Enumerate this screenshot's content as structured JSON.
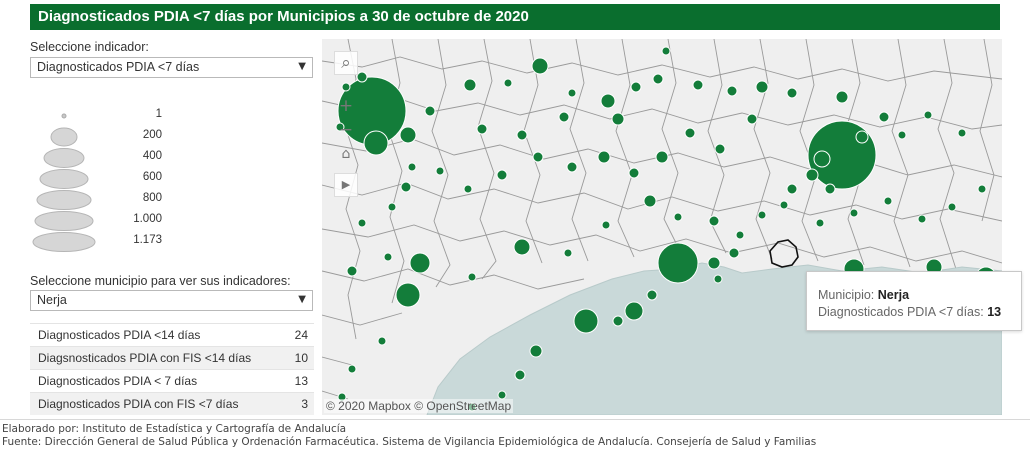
{
  "title": "Diagnosticados PDIA <7 días por Municipios a 30 de octubre de 2020",
  "indicator_selector": {
    "label": "Seleccione indicador:",
    "selected": "Diagnosticados PDIA <7 días"
  },
  "size_legend": [
    "1",
    "200",
    "400",
    "600",
    "800",
    "1.000",
    "1.173"
  ],
  "municipality_selector": {
    "label": "Seleccione municipio para ver sus indicadores:",
    "selected": "Nerja"
  },
  "indicators": [
    {
      "name": "Diagnosticados PDIA <14 días",
      "value": "24"
    },
    {
      "name": "Diagsnosticados PDIA con FIS <14 días",
      "value": "10"
    },
    {
      "name": "Diagnosticados PDIA < 7 días",
      "value": "13"
    },
    {
      "name": "Diagnosticados PDIA con FIS <7 días",
      "value": "3"
    }
  ],
  "map": {
    "attribution": "© 2020 Mapbox © OpenStreetMap",
    "controls": [
      "search-icon",
      "zoom-in-icon",
      "zoom-out-icon",
      "home-icon",
      "play-icon"
    ],
    "colors": {
      "land": "#efefef",
      "sea": "#c9d9d9",
      "bubble": "#137d3a",
      "border": "#9a9a9a"
    }
  },
  "tooltip": {
    "municipio_label": "Municipio:",
    "municipio_value": "Nerja",
    "indicator_label": "Diagnosticados PDIA <7 días:",
    "indicator_value": "13"
  },
  "footer": {
    "credit": "Elaborado por: Instituto de Estadística y Cartografía de Andalucía",
    "source": "Fuente: Dirección General de Salud Pública y Ordenación Farmacéutica. Sistema de Vigilancia Epidemiológica de Andalucía. Consejería de Salud y Familias"
  }
}
